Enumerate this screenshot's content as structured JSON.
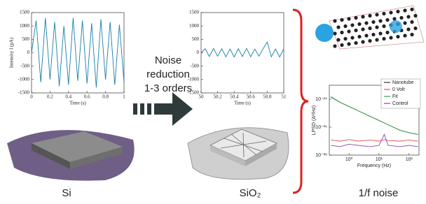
{
  "chart_data": [
    {
      "type": "line",
      "x_label": "Time (s)",
      "y_label": "Intensity I (pA)",
      "x": [
        0,
        0.05,
        0.1,
        0.15,
        0.2,
        0.25,
        0.3,
        0.35,
        0.4,
        0.45,
        0.5,
        0.55,
        0.6,
        0.65,
        0.7,
        0.75,
        0.8,
        0.85,
        0.9,
        0.95,
        1
      ],
      "series": [
        {
          "color": "#1a7fa8",
          "values": [
            0,
            1200,
            -1100,
            1300,
            -1000,
            1150,
            -1250,
            1000,
            -1200,
            1300,
            -1050,
            1200,
            -1150,
            1100,
            -1300,
            1250,
            -1000,
            1150,
            -1200,
            1050,
            -1100
          ]
        }
      ],
      "xlim": [
        0,
        1
      ],
      "ylim": [
        -1500,
        1500
      ],
      "xticks": [
        0,
        0.2,
        0.4,
        0.6,
        0.8,
        1
      ],
      "yticks": [
        -1500,
        -1000,
        -500,
        0,
        500,
        1000,
        1500
      ]
    },
    {
      "type": "line",
      "x_label": "Time (s)",
      "x": [
        50,
        50.05,
        50.1,
        50.15,
        50.2,
        50.25,
        50.3,
        50.35,
        50.4,
        50.45,
        50.5,
        50.55,
        50.6,
        50.65,
        50.7,
        50.75,
        50.8,
        50.85,
        50.9,
        50.95,
        51
      ],
      "series": [
        {
          "color": "#1a7fa8",
          "values": [
            0,
            150,
            -140,
            160,
            -130,
            150,
            -150,
            140,
            -160,
            150,
            -140,
            160,
            -150,
            140,
            -130,
            150,
            400,
            -150,
            140,
            -160,
            150
          ]
        }
      ],
      "xlim": [
        50,
        51
      ],
      "ylim": [
        -1500,
        1500
      ],
      "xticks": [
        50,
        50.2,
        50.4,
        50.6,
        50.8,
        51
      ],
      "yticks": [
        -1500,
        -1000,
        -500,
        0,
        500,
        1000,
        1500
      ]
    },
    {
      "type": "line",
      "x_label": "Frequency (Hz)",
      "y_label": "LPSD (A²/Hz)",
      "xlog": true,
      "ylog": true,
      "legend": "upper right",
      "x": [
        0.25,
        0.5,
        1,
        2,
        5,
        10,
        15,
        20,
        50,
        100,
        200
      ],
      "series": [
        {
          "name": "Nanotube",
          "color": "#333333",
          "values": [
            1.5e-24,
            6e-25,
            3e-25,
            1.5e-25,
            6e-26,
            3e-26,
            2e-26,
            1.5e-26,
            6e-27,
            4e-27,
            3e-27
          ]
        },
        {
          "name": "0 Volt",
          "color": "#e0554a",
          "values": [
            1.2e-27,
            1e-27,
            1.3e-27,
            1e-27,
            1.2e-27,
            1e-27,
            1.3e-27,
            1.1e-27,
            1e-27,
            1.2e-27,
            1e-27
          ]
        },
        {
          "name": "Fit",
          "color": "#3aa04a",
          "values": [
            1.4e-24,
            6e-25,
            3e-25,
            1.5e-25,
            6e-26,
            3e-26,
            2e-26,
            1.5e-26,
            6e-27,
            4e-27,
            3e-27
          ]
        },
        {
          "name": "Control",
          "color": "#8a3fa8",
          "values": [
            5e-28,
            4e-28,
            6e-28,
            5e-28,
            4e-28,
            5e-28,
            3e-27,
            5e-28,
            4e-28,
            5e-28,
            4e-28
          ]
        }
      ],
      "xlim": [
        0.22,
        215
      ],
      "ylim": [
        1e-28,
        1e-23
      ],
      "xticks": [
        {
          "value": 1,
          "label": "10⁰"
        },
        {
          "value": 10,
          "label": "10¹"
        },
        {
          "value": 100,
          "label": "10²"
        }
      ],
      "yticks": [
        {
          "value": 1e-24,
          "label": "10⁻²⁴"
        },
        {
          "value": 1e-26,
          "label": "10⁻²⁶"
        },
        {
          "value": 1e-28,
          "label": "10⁻²⁸"
        }
      ]
    }
  ],
  "arrow_text": [
    "Noise",
    "reduction",
    "1-3 orders"
  ],
  "labels": {
    "left": "Si",
    "middle": "SiO₂",
    "right": "1/f noise"
  }
}
